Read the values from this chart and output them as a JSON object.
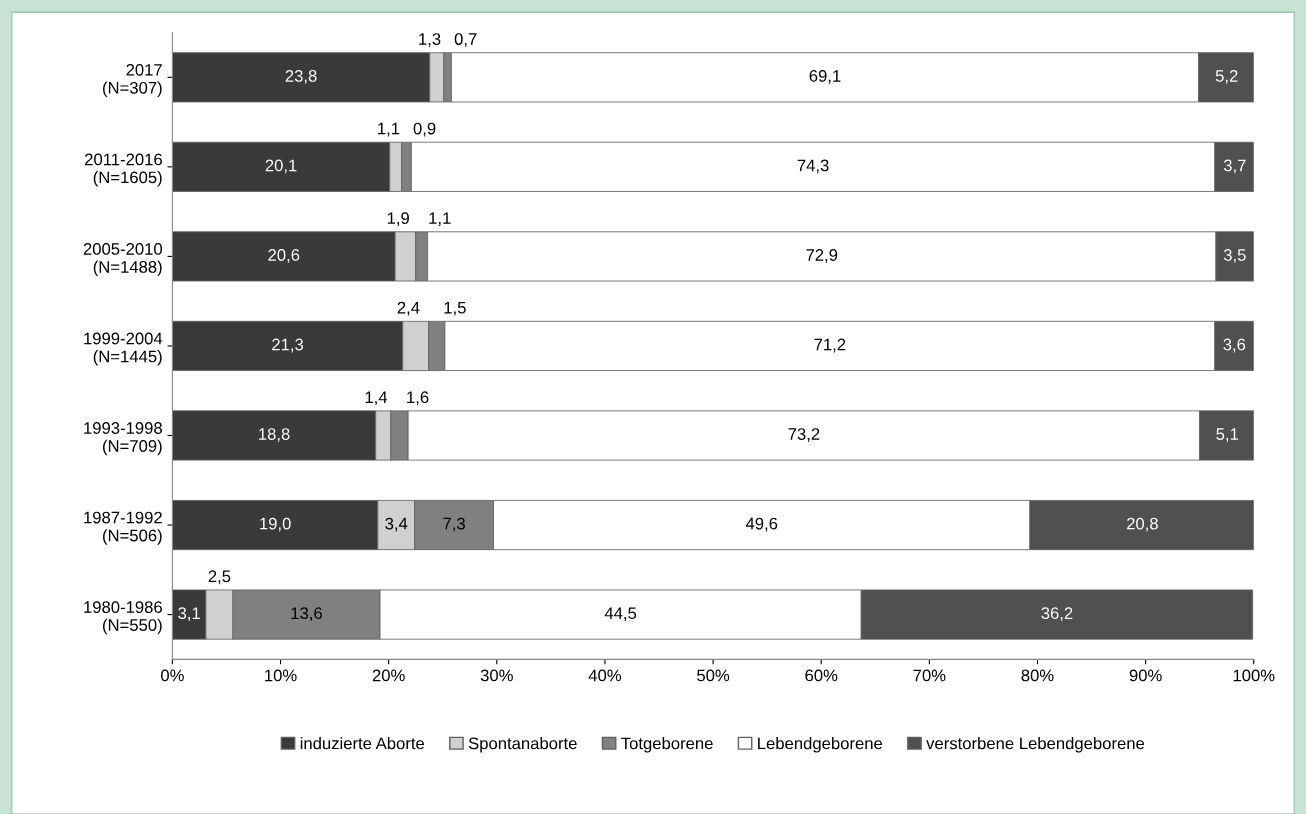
{
  "chart_data": {
    "type": "bar",
    "orientation": "horizontal",
    "stacked": true,
    "categories": [
      "2017\n(N=307)",
      "2011-2016\n(N=1605)",
      "2005-2010\n(N=1488)",
      "1999-2004\n(N=1445)",
      "1993-1998\n(N=709)",
      "1987-1992\n(N=506)",
      "1980-1986\n(N=550)"
    ],
    "series": [
      {
        "name": "induzierte Aborte",
        "color": "#3a3a3a",
        "values": [
          23.8,
          20.1,
          20.6,
          21.3,
          18.8,
          19.0,
          3.1
        ],
        "value_labels": [
          "23,8",
          "20,1",
          "20,6",
          "21,3",
          "18,8",
          "19,0",
          "3,1"
        ]
      },
      {
        "name": "Spontanaborte",
        "color": "#d0d0d0",
        "values": [
          1.3,
          1.1,
          1.9,
          2.4,
          1.4,
          3.4,
          2.5
        ],
        "value_labels": [
          "1,3",
          "1,1",
          "1,9",
          "2,4",
          "1,4",
          "3,4",
          "2,5"
        ]
      },
      {
        "name": "Totgeborene",
        "color": "#808080",
        "values": [
          0.7,
          0.9,
          1.1,
          1.5,
          1.6,
          7.3,
          13.6
        ],
        "value_labels": [
          "0,7",
          "0,9",
          "1,1",
          "1,5",
          "1,6",
          "7,3",
          "13,6"
        ]
      },
      {
        "name": "Lebendgeborene",
        "color": "#ffffff",
        "values": [
          69.1,
          74.3,
          72.9,
          71.2,
          73.2,
          49.6,
          44.5
        ],
        "value_labels": [
          "69,1",
          "74,3",
          "72,9",
          "71,2",
          "73,2",
          "49,6",
          "44,5"
        ]
      },
      {
        "name": "verstorbene Lebendgeborene",
        "color": "#505050",
        "values": [
          5.2,
          3.7,
          3.5,
          3.6,
          5.1,
          20.8,
          36.2
        ],
        "value_labels": [
          "5,2",
          "3,7",
          "3,5",
          "3,6",
          "5,1",
          "20,8",
          "36,2"
        ]
      }
    ],
    "xlim": [
      0,
      100
    ],
    "xticks": [
      {
        "value": 0,
        "label": "0%"
      },
      {
        "value": 10,
        "label": "10%"
      },
      {
        "value": 20,
        "label": "20%"
      },
      {
        "value": 30,
        "label": "30%"
      },
      {
        "value": 40,
        "label": "40%"
      },
      {
        "value": 50,
        "label": "50%"
      },
      {
        "value": 60,
        "label": "60%"
      },
      {
        "value": 70,
        "label": "70%"
      },
      {
        "value": 80,
        "label": "80%"
      },
      {
        "value": 90,
        "label": "90%"
      },
      {
        "value": 100,
        "label": "100%"
      }
    ],
    "legend": "bottom",
    "grid": false
  }
}
